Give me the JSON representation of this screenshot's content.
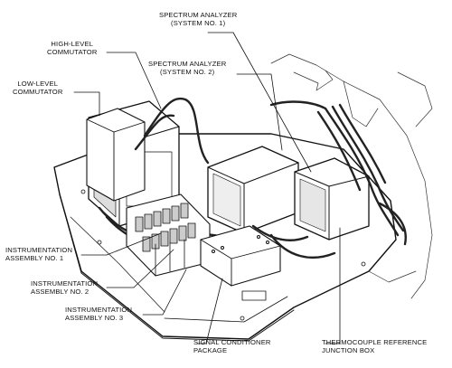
{
  "labels": {
    "spectrum_analyzer_1": {
      "line1": "SPECTRUM ANALYZER",
      "line2": "(SYSTEM NO. 1)"
    },
    "spectrum_analyzer_2": {
      "line1": "SPECTRUM ANALYZER",
      "line2": "(SYSTEM NO. 2)"
    },
    "high_level_commutator": {
      "line1": "HIGH-LEVEL",
      "line2": "COMMUTATOR"
    },
    "low_level_commutator": {
      "line1": "LOW-LEVEL",
      "line2": "COMMUTATOR"
    },
    "instrumentation_assembly_1": {
      "line1": "INSTRUMENTATION",
      "line2": "ASSEMBLY NO. 1"
    },
    "instrumentation_assembly_2": {
      "line1": "INSTRUMENTATION",
      "line2": "ASSEMBLY NO. 2"
    },
    "instrumentation_assembly_3": {
      "line1": "INSTRUMENTATION",
      "line2": "ASSEMBLY NO. 3"
    },
    "signal_conditioner_package": {
      "line1": "SIGNAL CONDITIONER",
      "line2": "PACKAGE"
    },
    "thermocouple_reference_junction_box": {
      "line1": "THERMOCOUPLE REFERENCE",
      "line2": "JUNCTION BOX"
    }
  },
  "colors": {
    "ink": "#111111",
    "background": "#ffffff",
    "shade": "#9a9a9a"
  }
}
